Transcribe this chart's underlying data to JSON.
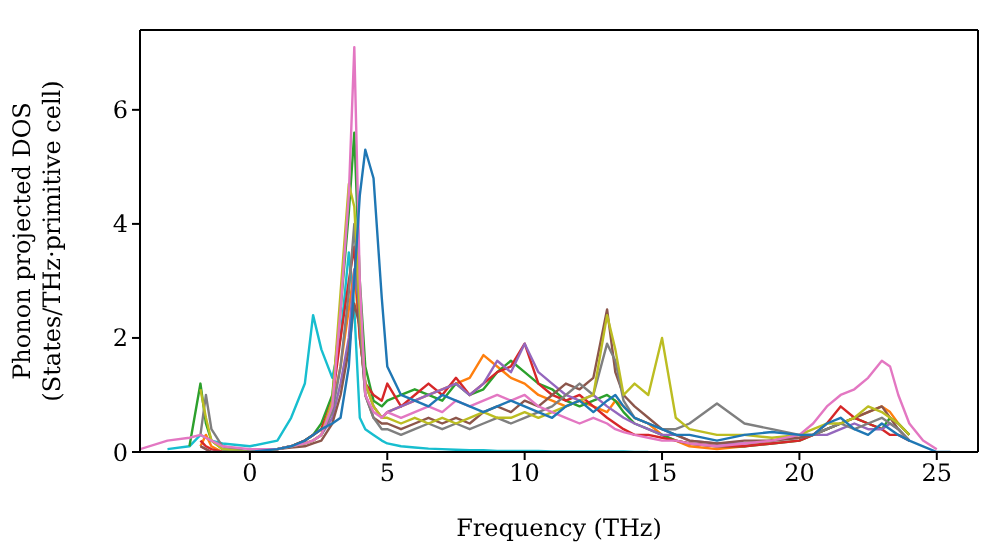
{
  "chart_data": {
    "type": "line",
    "xlabel": "Frequency (THz)",
    "ylabel": "Phonon projected DOS\n(States/THz·primitive cell)",
    "marker": "none",
    "line_style": "solid",
    "xlim": [
      -4,
      26.5
    ],
    "ylim": [
      0,
      7.4
    ],
    "xticks": [
      0,
      5,
      10,
      15,
      20,
      25
    ],
    "yticks": [
      0,
      2,
      4,
      6
    ],
    "x": [
      -4,
      -3,
      -2.2,
      -1.8,
      -1.6,
      -1.4,
      -1,
      0,
      1,
      1.5,
      2,
      2.3,
      2.6,
      3,
      3.3,
      3.6,
      3.8,
      4,
      4.2,
      4.5,
      4.8,
      5,
      5.5,
      6,
      6.5,
      7,
      7.5,
      8,
      8.5,
      9,
      9.5,
      10,
      10.5,
      11,
      11.5,
      12,
      12.5,
      13,
      13.3,
      13.6,
      14,
      14.5,
      15,
      15.5,
      16,
      17,
      18,
      19,
      20,
      20.5,
      21,
      21.5,
      22,
      22.5,
      23,
      23.3,
      23.6,
      24,
      24.5,
      25,
      25.5
    ],
    "series": [
      {
        "color": "#17becf",
        "values": [
          null,
          0.05,
          0.1,
          0.3,
          0.25,
          0.2,
          0.15,
          0.1,
          0.2,
          0.6,
          1.2,
          2.4,
          1.8,
          1.3,
          2.0,
          3.5,
          2.5,
          0.6,
          0.4,
          0.3,
          0.2,
          0.15,
          0.1,
          0.08,
          0.06,
          0.05,
          0.04,
          0.03,
          0.03,
          0.02,
          0.02,
          0.02,
          0.02,
          0.01,
          0.01,
          0.01,
          0.01,
          0.01,
          0.01,
          0.01,
          0,
          0,
          null,
          null,
          null,
          null,
          null,
          null,
          null,
          null,
          null,
          null,
          null,
          null,
          null,
          null,
          null,
          null,
          null,
          null,
          null
        ]
      },
      {
        "color": "#ff7f0e",
        "values": [
          null,
          null,
          null,
          0.1,
          0.3,
          0.1,
          0,
          0,
          0.05,
          0.1,
          0.2,
          0.3,
          0.4,
          0.8,
          1.5,
          2.5,
          3.2,
          2.0,
          1.2,
          0.8,
          0.6,
          0.7,
          0.8,
          0.9,
          1.0,
          1.1,
          1.2,
          1.3,
          1.7,
          1.5,
          1.3,
          1.2,
          1.0,
          0.9,
          0.8,
          0.9,
          0.8,
          0.7,
          0.9,
          0.8,
          0.6,
          0.5,
          0.3,
          0.2,
          0.1,
          0.05,
          0.1,
          0.2,
          0.3,
          0.3,
          0.4,
          0.5,
          0.6,
          0.7,
          0.8,
          0.7,
          0.5,
          0.3,
          null,
          null,
          null
        ]
      },
      {
        "color": "#2ca02c",
        "values": [
          null,
          null,
          0.1,
          1.2,
          0.5,
          0.2,
          0.05,
          0,
          0.05,
          0.1,
          0.2,
          0.3,
          0.5,
          1.0,
          2.5,
          4.2,
          5.6,
          3.0,
          1.5,
          0.9,
          0.8,
          0.9,
          1.0,
          1.1,
          1.0,
          0.9,
          1.2,
          1.0,
          1.1,
          1.4,
          1.6,
          1.4,
          1.2,
          1.1,
          0.9,
          0.8,
          0.9,
          1.0,
          0.9,
          0.7,
          0.5,
          0.4,
          0.3,
          0.2,
          0.15,
          0.1,
          0.1,
          0.15,
          0.2,
          0.3,
          0.4,
          0.5,
          0.6,
          0.5,
          0.4,
          0.6,
          0.5,
          0.3,
          null,
          null,
          null
        ]
      },
      {
        "color": "#d62728",
        "values": [
          null,
          null,
          null,
          0.2,
          0.1,
          0.05,
          0,
          0,
          0.05,
          0.1,
          0.2,
          0.3,
          0.4,
          0.9,
          2.0,
          3.0,
          3.6,
          2.0,
          1.2,
          1.0,
          0.9,
          1.2,
          0.8,
          1.0,
          1.2,
          1.0,
          1.3,
          1.0,
          1.2,
          1.4,
          1.5,
          1.9,
          1.2,
          1.0,
          0.9,
          1.0,
          0.8,
          0.6,
          0.5,
          0.4,
          0.3,
          0.3,
          0.25,
          0.2,
          0.15,
          0.1,
          0.1,
          0.15,
          0.2,
          0.3,
          0.5,
          0.8,
          0.6,
          0.5,
          0.4,
          0.3,
          0.3,
          0.2,
          null,
          null,
          null
        ]
      },
      {
        "color": "#9467bd",
        "values": [
          null,
          null,
          null,
          0.1,
          0.05,
          0,
          0,
          0,
          0.05,
          0.1,
          0.15,
          0.2,
          0.3,
          0.6,
          1.2,
          2.0,
          3.2,
          2.5,
          1.2,
          0.8,
          0.6,
          0.7,
          0.8,
          0.9,
          1.0,
          1.1,
          1.2,
          1.0,
          1.2,
          1.6,
          1.4,
          1.9,
          1.4,
          1.2,
          1.0,
          0.9,
          1.0,
          0.8,
          0.7,
          0.6,
          0.5,
          0.4,
          0.3,
          0.3,
          0.2,
          0.15,
          0.15,
          0.2,
          0.25,
          0.3,
          0.3,
          0.4,
          0.5,
          0.4,
          0.4,
          0.5,
          0.4,
          0.2,
          null,
          null,
          null
        ]
      },
      {
        "color": "#8c564b",
        "values": [
          null,
          null,
          null,
          0.1,
          0.05,
          0,
          0,
          0,
          0.05,
          0.08,
          0.1,
          0.15,
          0.2,
          0.5,
          1.0,
          1.8,
          2.6,
          2.2,
          1.0,
          0.6,
          0.5,
          0.5,
          0.4,
          0.5,
          0.6,
          0.5,
          0.6,
          0.5,
          0.7,
          0.8,
          0.7,
          0.9,
          0.8,
          1.0,
          1.2,
          1.1,
          1.3,
          2.5,
          1.4,
          1.0,
          0.8,
          0.6,
          0.4,
          0.3,
          0.2,
          0.15,
          0.2,
          0.2,
          0.25,
          0.3,
          0.4,
          0.5,
          0.6,
          0.7,
          0.8,
          0.6,
          0.4,
          0.2,
          null,
          null,
          null
        ]
      },
      {
        "color": "#7f7f7f",
        "values": [
          null,
          null,
          null,
          0.3,
          1.0,
          0.4,
          0.1,
          0,
          0.05,
          0.1,
          0.15,
          0.2,
          0.3,
          0.7,
          1.5,
          2.8,
          4.0,
          2.2,
          1.0,
          0.6,
          0.4,
          0.4,
          0.3,
          0.4,
          0.5,
          0.4,
          0.5,
          0.4,
          0.5,
          0.6,
          0.5,
          0.6,
          0.7,
          0.8,
          1.0,
          1.2,
          1.0,
          1.9,
          1.6,
          0.9,
          0.6,
          0.5,
          0.4,
          0.4,
          0.5,
          0.85,
          0.5,
          0.4,
          0.3,
          0.3,
          0.4,
          0.5,
          0.4,
          0.5,
          0.6,
          0.5,
          0.4,
          0.2,
          null,
          null,
          null
        ]
      },
      {
        "color": "#bcbd22",
        "values": [
          null,
          null,
          null,
          1.1,
          0.6,
          0.2,
          0.05,
          0,
          0.05,
          0.1,
          0.15,
          0.2,
          0.3,
          0.9,
          2.8,
          4.7,
          4.3,
          2.5,
          1.2,
          0.8,
          0.6,
          0.6,
          0.5,
          0.6,
          0.5,
          0.6,
          0.5,
          0.6,
          0.7,
          0.6,
          0.6,
          0.7,
          0.6,
          0.7,
          0.8,
          0.9,
          1.0,
          2.4,
          1.8,
          1.0,
          1.2,
          1.0,
          2.0,
          0.6,
          0.4,
          0.3,
          0.3,
          0.25,
          0.3,
          0.4,
          0.5,
          0.5,
          0.6,
          0.8,
          0.7,
          0.6,
          0.5,
          0.3,
          null,
          null,
          null
        ]
      },
      {
        "color": "#e377c2",
        "values": [
          0.05,
          0.2,
          0.25,
          0.3,
          0.25,
          0.2,
          0.1,
          0.05,
          0.05,
          0.1,
          0.15,
          0.2,
          0.3,
          0.8,
          2.5,
          4.5,
          7.1,
          3.0,
          1.0,
          0.7,
          0.6,
          0.7,
          0.6,
          0.7,
          0.8,
          0.7,
          0.9,
          0.8,
          0.9,
          1.0,
          0.9,
          1.0,
          0.8,
          0.7,
          0.6,
          0.5,
          0.6,
          0.5,
          0.4,
          0.35,
          0.3,
          0.25,
          0.2,
          0.2,
          0.15,
          0.1,
          0.15,
          0.2,
          0.3,
          0.5,
          0.8,
          1.0,
          1.1,
          1.3,
          1.6,
          1.5,
          1.0,
          0.5,
          0.2,
          0.05,
          null
        ]
      },
      {
        "color": "#1f77b4",
        "values": [
          null,
          null,
          null,
          null,
          null,
          null,
          0,
          0,
          0.05,
          0.1,
          0.2,
          0.3,
          0.4,
          0.5,
          0.6,
          1.5,
          3.0,
          4.5,
          5.3,
          4.8,
          2.7,
          1.5,
          1.0,
          0.9,
          0.8,
          1.0,
          0.9,
          0.8,
          0.7,
          0.8,
          0.9,
          0.8,
          0.7,
          0.6,
          0.8,
          0.9,
          0.7,
          0.9,
          1.0,
          0.8,
          0.6,
          0.5,
          0.4,
          0.3,
          0.3,
          0.2,
          0.3,
          0.35,
          0.3,
          0.3,
          0.5,
          0.6,
          0.4,
          0.3,
          0.5,
          0.4,
          0.3,
          0.2,
          0.1,
          0,
          0
        ]
      }
    ]
  }
}
